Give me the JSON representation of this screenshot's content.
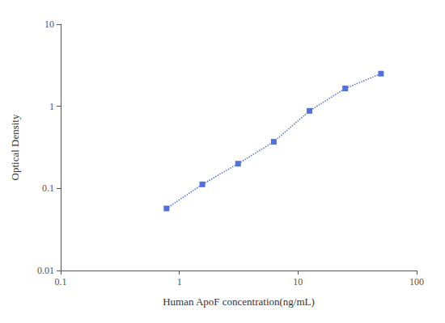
{
  "chart_data": {
    "type": "line",
    "xlabel": "Human ApoF concentration(ng/mL)",
    "ylabel": "Optical Density",
    "x": [
      0.78,
      1.5625,
      3.125,
      6.25,
      12.5,
      25.0,
      50.0
    ],
    "values": [
      0.057,
      0.112,
      0.2,
      0.37,
      0.88,
      1.65,
      2.5
    ],
    "xlim": [
      0.1,
      100
    ],
    "ylim": [
      0.01,
      10
    ],
    "xticks": [
      0.1,
      1,
      10,
      100
    ],
    "yticks": [
      0.01,
      0.1,
      1,
      10
    ],
    "log": true,
    "grid": false,
    "marker": "square",
    "line_style": "dotted"
  }
}
